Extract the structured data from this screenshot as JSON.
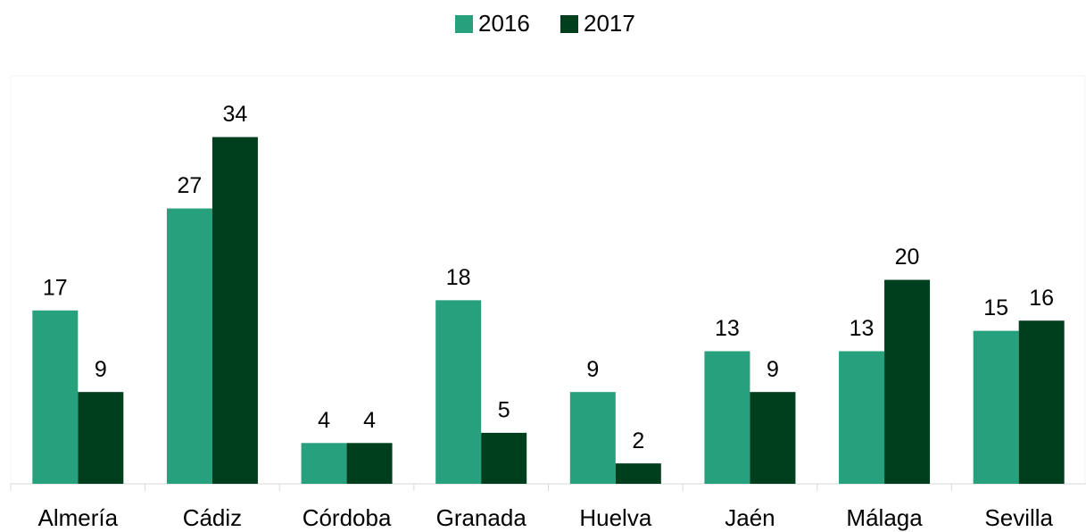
{
  "chart_data": {
    "type": "bar",
    "categories": [
      "Almería",
      "Cádiz",
      "Córdoba",
      "Granada",
      "Huelva",
      "Jaén",
      "Málaga",
      "Sevilla"
    ],
    "series": [
      {
        "name": "2016",
        "color": "#27a07e",
        "values": [
          17,
          27,
          4,
          18,
          9,
          13,
          13,
          15
        ]
      },
      {
        "name": "2017",
        "color": "#003f1d",
        "values": [
          9,
          34,
          4,
          5,
          2,
          9,
          20,
          16
        ]
      }
    ],
    "ylim": [
      0,
      40
    ],
    "legend": "top"
  }
}
